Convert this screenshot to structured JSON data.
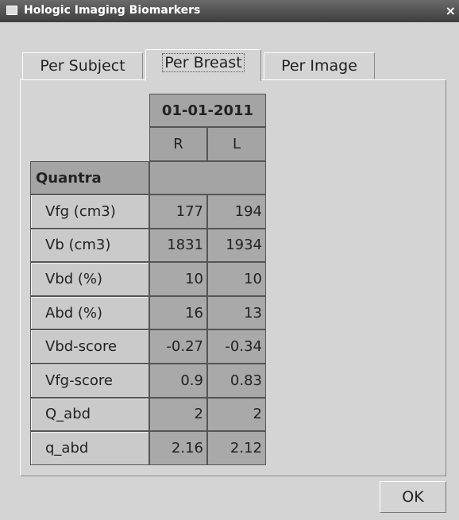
{
  "window": {
    "title": "Hologic Imaging Biomarkers",
    "close": "×"
  },
  "tabs": [
    "Per Subject",
    "Per Breast",
    "Per Image"
  ],
  "selected_tab": 1,
  "table": {
    "date": "01-01-2011",
    "columns": [
      "R",
      "L"
    ],
    "section": "Quantra",
    "rows": [
      [
        "Vfg (cm3)",
        177,
        194
      ],
      [
        "Vb (cm3)",
        1831,
        1934
      ],
      [
        "Vbd (%)",
        10,
        10
      ],
      [
        "Abd (%)",
        16,
        13
      ],
      [
        "Vbd-score",
        -0.27,
        -0.34
      ],
      [
        "Vfg-score",
        0.9,
        0.83
      ],
      [
        "Q_abd",
        2,
        2
      ],
      [
        "q_abd",
        2.16,
        2.12
      ]
    ]
  },
  "button": "OK"
}
